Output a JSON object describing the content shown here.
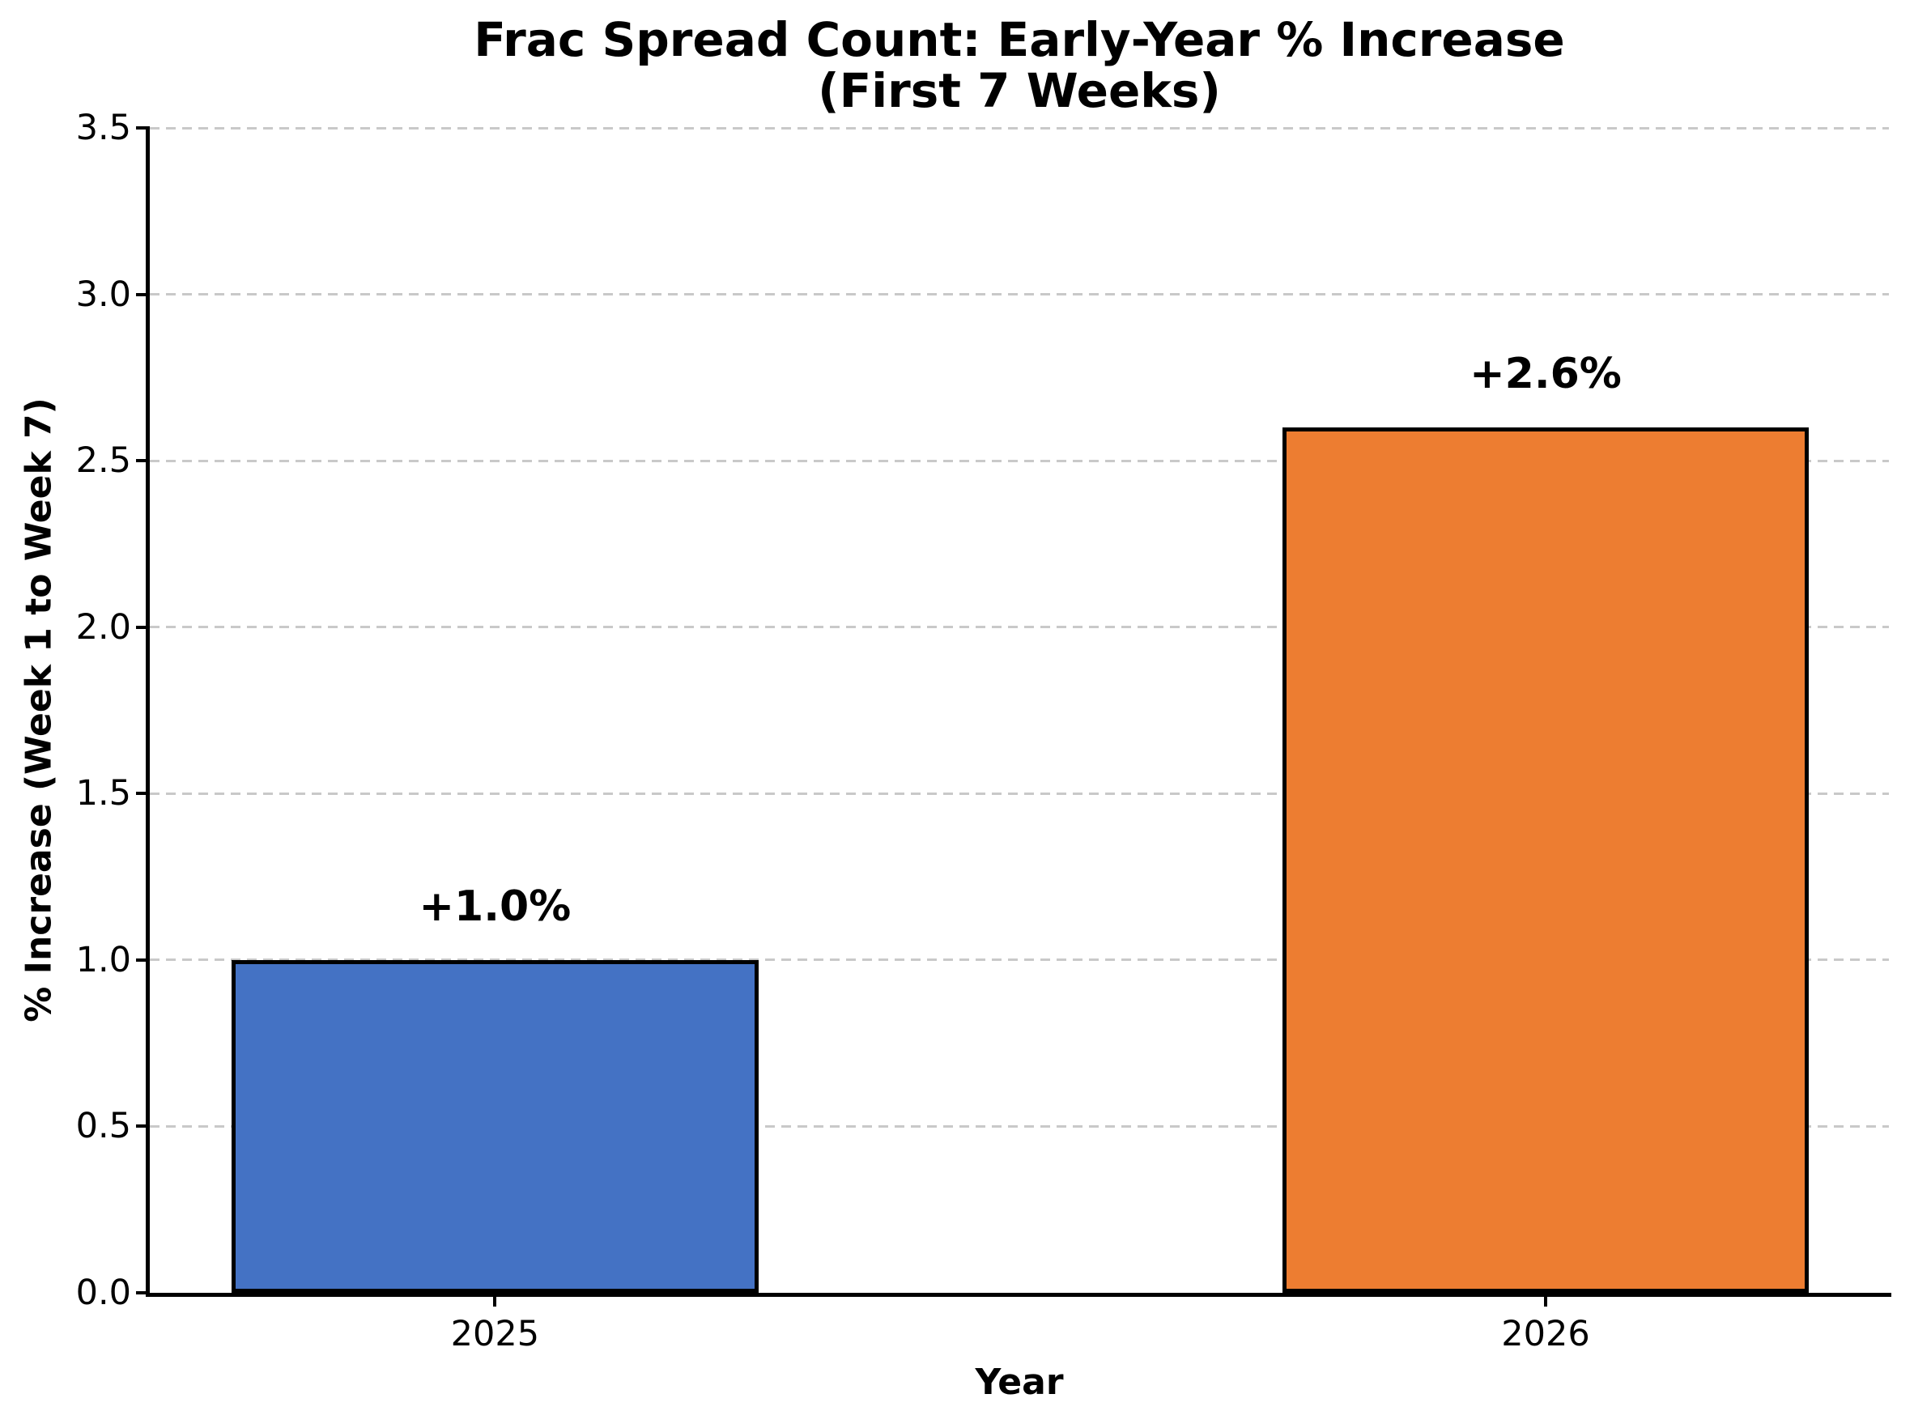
{
  "figure": {
    "background": "#ffffff"
  },
  "chart_data": {
    "type": "bar",
    "title": "Frac Spread Count: Early-Year % Increase",
    "subtitle": "(First 7 Weeks)",
    "xlabel": "Year",
    "ylabel": "% Increase (Week 1 to Week 7)",
    "categories": [
      "2025",
      "2026"
    ],
    "values": [
      1.0,
      2.6
    ],
    "bar_labels": [
      "+1.0%",
      "+2.6%"
    ],
    "bar_colors": [
      "#4472C4",
      "#ED7D31"
    ],
    "bar_edge_color": "#000000",
    "ylim": [
      0,
      3.5
    ],
    "yticks": [
      0,
      0.5,
      1,
      1.5,
      2,
      2.5,
      3,
      3.5
    ],
    "ytick_labels": [
      "0.0",
      "0.5",
      "1.0",
      "1.5",
      "2.0",
      "2.5",
      "3.0",
      "3.5"
    ],
    "grid": {
      "axis": "y",
      "style": "dashed",
      "color": "#c9c9c9"
    },
    "legend_position": "none",
    "axis_color": "#000000",
    "text_color": "#000000"
  }
}
